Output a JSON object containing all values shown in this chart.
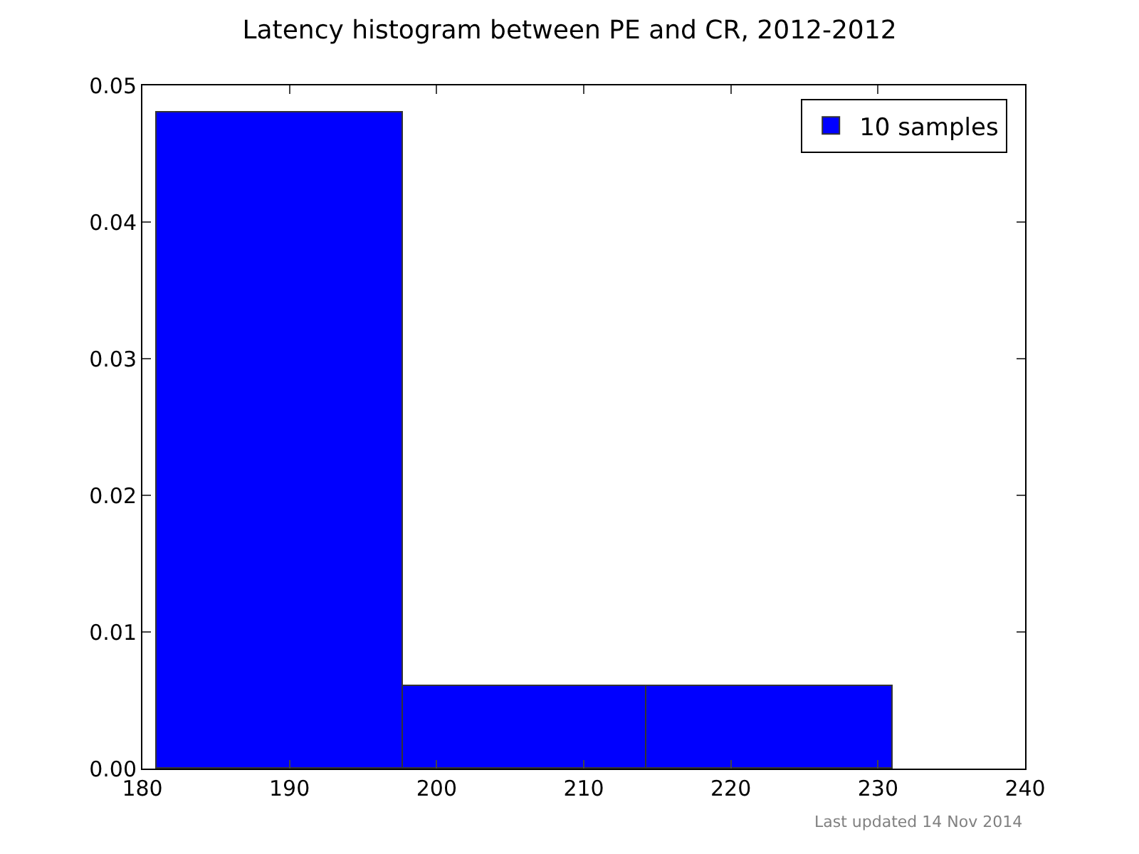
{
  "chart_data": {
    "type": "histogram",
    "title": "Latency histogram between PE and CR, 2012-2012",
    "bins": [
      181,
      197.7,
      214.3,
      231
    ],
    "series": [
      {
        "name": "10 samples",
        "color": "#0000ff",
        "values": [
          0.048,
          0.006,
          0.006
        ]
      }
    ],
    "xlim": [
      180,
      240
    ],
    "xticks": [
      180,
      190,
      200,
      210,
      220,
      230,
      240
    ],
    "ylim": [
      0,
      0.05
    ],
    "yticks": [
      {
        "value": 0,
        "label": "0.00"
      },
      {
        "value": 0.01,
        "label": "0.01"
      },
      {
        "value": 0.02,
        "label": "0.02"
      },
      {
        "value": 0.03,
        "label": "0.03"
      },
      {
        "value": 0.04,
        "label": "0.04"
      },
      {
        "value": 0.05,
        "label": "0.05"
      }
    ],
    "legend": "top right",
    "grid": false,
    "annotations": [
      "Last updated 14 Nov 2014"
    ]
  }
}
